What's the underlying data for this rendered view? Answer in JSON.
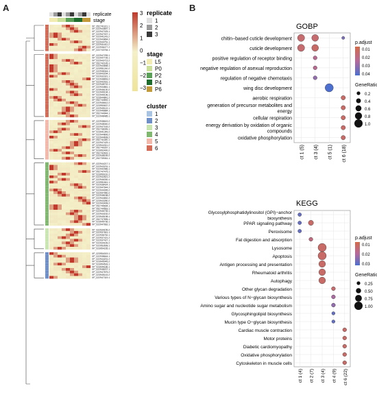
{
  "figure": {
    "panel_a_label": "A",
    "panel_b_label": "B"
  },
  "heatmap": {
    "top_labels": [
      "replicate",
      "stage"
    ],
    "scale_ticks": [
      "3",
      "2",
      "1",
      "0",
      "−1",
      "−2",
      "−3"
    ],
    "legend_replicate": {
      "title": "replicate",
      "items": [
        "1",
        "2",
        "3"
      ],
      "colors": [
        "#e0e0e0",
        "#9b9b9b",
        "#3a3a3a"
      ]
    },
    "legend_stage": {
      "title": "stage",
      "items": [
        "L5",
        "P0",
        "P2",
        "P4",
        "P6"
      ],
      "colors": [
        "#f3ecb2",
        "#c9df9a",
        "#5aa058",
        "#1e6b2e",
        "#c39a3a"
      ]
    },
    "legend_cluster": {
      "title": "cluster",
      "items": [
        "1",
        "2",
        "3",
        "4",
        "5",
        "6"
      ],
      "colors": [
        "#a8c4e2",
        "#6f8fc9",
        "#c9e6b0",
        "#7fb86e",
        "#f3b8a9",
        "#d36b57"
      ]
    },
    "row_clusters": [
      {
        "cluster": "6",
        "genes": [
          "XP_052741101.1",
          "XP_022944897.1",
          "XP_022947025.1",
          "XP_022947007.1",
          "XP_022941143.2",
          "XP_022943864.2",
          "XP_022934751.1",
          "XP_022941161.2",
          "XP_022936477.2",
          "XP_022743764.1"
        ]
      },
      {
        "cluster": "6",
        "genes": [
          "XP_022947299.1",
          "XP_022947735.1",
          "XP_022943713.2",
          "XP_052742145.1",
          "XP_022944658.1",
          "XP_023951240.2",
          "XP_022938344.1",
          "XP_023943294.1",
          "XP_022932321.1",
          "XP_022938893.2",
          "XP_022942931.1",
          "XP_022948702.1",
          "XP_022934861.1",
          "XP_023946130.2",
          "XP_022949194.1",
          "XP_022949196.1",
          "XP_023944841.2",
          "XP_052740892.1",
          "XP_022946612.2",
          "XP_023950637.2",
          "XP_022945113.1",
          "XP_022946884.1",
          "XP_052744944.1",
          "XP_022948485.1"
        ]
      },
      {
        "cluster": "5",
        "genes": [
          "XP_022938619.2",
          "XP_022948040.2",
          "XP_022947163.2",
          "XP_052738399.1",
          "XP_023941349.2",
          "XP_022944806.2",
          "XP_022944608.2",
          "XP_052741180.1",
          "XP_022947429.1",
          "XP_023944311.2",
          "XP_052740267.1",
          "XP_023952400.2",
          "XP_052742602.1",
          "XP_022938159.2",
          "XP_052739061.1"
        ]
      },
      {
        "cluster": "4",
        "genes": [
          "XP_022944217.1",
          "XP_022943231.1",
          "XP_022942986.1",
          "XP_052747475.1",
          "XP_023950161.2",
          "XP_022942821.2",
          "XP_022946330.1",
          "XP_023951841.1",
          "XP_022938424.1",
          "XP_022947644.2",
          "XP_022934395.2",
          "XP_022947960.2",
          "XP_022938158.2",
          "XP_022944652.2",
          "XP_023943280.2",
          "XP_022943408.2",
          "XP_052745694.1",
          "XP_052744563.1",
          "XP_022935739.1",
          "XP_022944152.2",
          "XP_023945198.1",
          "XP_052737895.1",
          "XP_023945736.1",
          "XP_022947662.1"
        ]
      },
      {
        "cluster": "3",
        "genes": [
          "XP_022934155.2",
          "XP_022937641.1",
          "XP_022936752.1",
          "XP_022937421.2",
          "XP_022937427.1",
          "XP_022934169.2",
          "XP_022952608.1",
          "XP_023954235.1"
        ]
      },
      {
        "cluster": "2",
        "genes": [
          "XP_023954019.1",
          "XP_022938644.1",
          "XP_022944201.2",
          "XP_023945045.2",
          "XP_023954533.1",
          "XP_023945186.1",
          "XP_022938207.1",
          "XP_022947875.2",
          "XP_023945143.2",
          "XP_022947319.1"
        ]
      }
    ]
  },
  "gobp": {
    "title": "GOBP",
    "terms": [
      "chitin−based cuticle development",
      "cuticle development",
      "positive regulation of receptor binding",
      "negative regulation of asexual reproduction",
      "regulation of negative chemotaxis",
      "wing disc development",
      "aerobic respiration",
      "generation of precursor metabolites and energy",
      "cellular respiration",
      "energy derivation by oxidation of organic compounds",
      "oxidative phosphorylation"
    ],
    "clusters": [
      "ct 1 (5)",
      "ct 3 (4)",
      "ct 5 (1)",
      "ct 6 (18)"
    ],
    "points": [
      {
        "term": 0,
        "cluster": 0,
        "gene_ratio": 0.8,
        "p_adjust": 0.01
      },
      {
        "term": 0,
        "cluster": 1,
        "gene_ratio": 0.75,
        "p_adjust": 0.01
      },
      {
        "term": 0,
        "cluster": 3,
        "gene_ratio": 0.1,
        "p_adjust": 0.035
      },
      {
        "term": 1,
        "cluster": 0,
        "gene_ratio": 0.8,
        "p_adjust": 0.01
      },
      {
        "term": 1,
        "cluster": 1,
        "gene_ratio": 0.75,
        "p_adjust": 0.008
      },
      {
        "term": 2,
        "cluster": 1,
        "gene_ratio": 0.25,
        "p_adjust": 0.02
      },
      {
        "term": 3,
        "cluster": 1,
        "gene_ratio": 0.25,
        "p_adjust": 0.02
      },
      {
        "term": 4,
        "cluster": 1,
        "gene_ratio": 0.25,
        "p_adjust": 0.03
      },
      {
        "term": 5,
        "cluster": 2,
        "gene_ratio": 1.0,
        "p_adjust": 0.045
      },
      {
        "term": 6,
        "cluster": 3,
        "gene_ratio": 0.33,
        "p_adjust": 0.008
      },
      {
        "term": 7,
        "cluster": 3,
        "gene_ratio": 0.33,
        "p_adjust": 0.008
      },
      {
        "term": 8,
        "cluster": 3,
        "gene_ratio": 0.33,
        "p_adjust": 0.008
      },
      {
        "term": 9,
        "cluster": 3,
        "gene_ratio": 0.33,
        "p_adjust": 0.008
      },
      {
        "term": 10,
        "cluster": 3,
        "gene_ratio": 0.33,
        "p_adjust": 0.008
      }
    ],
    "legend_color_title": "p.adjust",
    "legend_color_ticks": [
      "0.01",
      "0.02",
      "0.03",
      "0.04"
    ],
    "legend_size_title": "GeneRatio",
    "legend_size_items": [
      "0.2",
      "0.4",
      "0.6",
      "0.8",
      "1.0"
    ]
  },
  "kegg": {
    "title": "KEGG",
    "terms": [
      "Glycosylphosphatidylinositol (GPI)−anchor biosynthesis",
      "PPAR signaling pathway",
      "Peroxisome",
      "Fat digestion and absorption",
      "Lysosome",
      "Apoptosis",
      "Antigen processing and presentation",
      "Rheumatoid arthritis",
      "Autophagy",
      "Other glycan degradation",
      "Various types of N−glycan biosynthesis",
      "Amino sugar and nucleotide sugar metabolism",
      "Glycosphingolipid biosynthesis",
      "Mucin type O−glycan biosynthesis",
      "Cardiac muscle contraction",
      "Motor proteins",
      "Diabetic cardiomyopathy",
      "Oxidative phosphorylation",
      "Cytoskeleton in muscle cells"
    ],
    "clusters": [
      "ct 1 (4)",
      "ct 2 (7)",
      "ct 3 (4)",
      "ct 4 (9)",
      "ct 6 (22)"
    ],
    "points": [
      {
        "term": 0,
        "cluster": 0,
        "gene_ratio": 0.25,
        "p_adjust": 0.04
      },
      {
        "term": 1,
        "cluster": 0,
        "gene_ratio": 0.25,
        "p_adjust": 0.04
      },
      {
        "term": 1,
        "cluster": 1,
        "gene_ratio": 0.5,
        "p_adjust": 0.008
      },
      {
        "term": 2,
        "cluster": 0,
        "gene_ratio": 0.25,
        "p_adjust": 0.04
      },
      {
        "term": 3,
        "cluster": 1,
        "gene_ratio": 0.3,
        "p_adjust": 0.015
      },
      {
        "term": 4,
        "cluster": 2,
        "gene_ratio": 1.0,
        "p_adjust": 0.008
      },
      {
        "term": 5,
        "cluster": 2,
        "gene_ratio": 1.0,
        "p_adjust": 0.008
      },
      {
        "term": 6,
        "cluster": 2,
        "gene_ratio": 0.75,
        "p_adjust": 0.008
      },
      {
        "term": 7,
        "cluster": 2,
        "gene_ratio": 0.75,
        "p_adjust": 0.008
      },
      {
        "term": 8,
        "cluster": 2,
        "gene_ratio": 0.75,
        "p_adjust": 0.008
      },
      {
        "term": 9,
        "cluster": 3,
        "gene_ratio": 0.3,
        "p_adjust": 0.01
      },
      {
        "term": 10,
        "cluster": 3,
        "gene_ratio": 0.3,
        "p_adjust": 0.025
      },
      {
        "term": 11,
        "cluster": 3,
        "gene_ratio": 0.3,
        "p_adjust": 0.03
      },
      {
        "term": 12,
        "cluster": 3,
        "gene_ratio": 0.2,
        "p_adjust": 0.04
      },
      {
        "term": 13,
        "cluster": 3,
        "gene_ratio": 0.2,
        "p_adjust": 0.04
      },
      {
        "term": 14,
        "cluster": 4,
        "gene_ratio": 0.3,
        "p_adjust": 0.008
      },
      {
        "term": 15,
        "cluster": 4,
        "gene_ratio": 0.3,
        "p_adjust": 0.008
      },
      {
        "term": 16,
        "cluster": 4,
        "gene_ratio": 0.3,
        "p_adjust": 0.008
      },
      {
        "term": 17,
        "cluster": 4,
        "gene_ratio": 0.3,
        "p_adjust": 0.008
      },
      {
        "term": 18,
        "cluster": 4,
        "gene_ratio": 0.3,
        "p_adjust": 0.008
      }
    ],
    "legend_color_title": "p.adjust",
    "legend_color_ticks": [
      "0.01",
      "0.02",
      "0.03"
    ],
    "legend_size_title": "GeneRatio",
    "legend_size_items": [
      "0.25",
      "0.50",
      "0.75",
      "1.00"
    ]
  },
  "colors": {
    "dot_low_p": "#d36b4a",
    "dot_mid_p": "#b56a9a",
    "dot_high_p": "#4d6fcf",
    "heat_high": "#c0392b",
    "heat_mid": "#f4f0c8",
    "heat_low": "#f2e6a0"
  }
}
